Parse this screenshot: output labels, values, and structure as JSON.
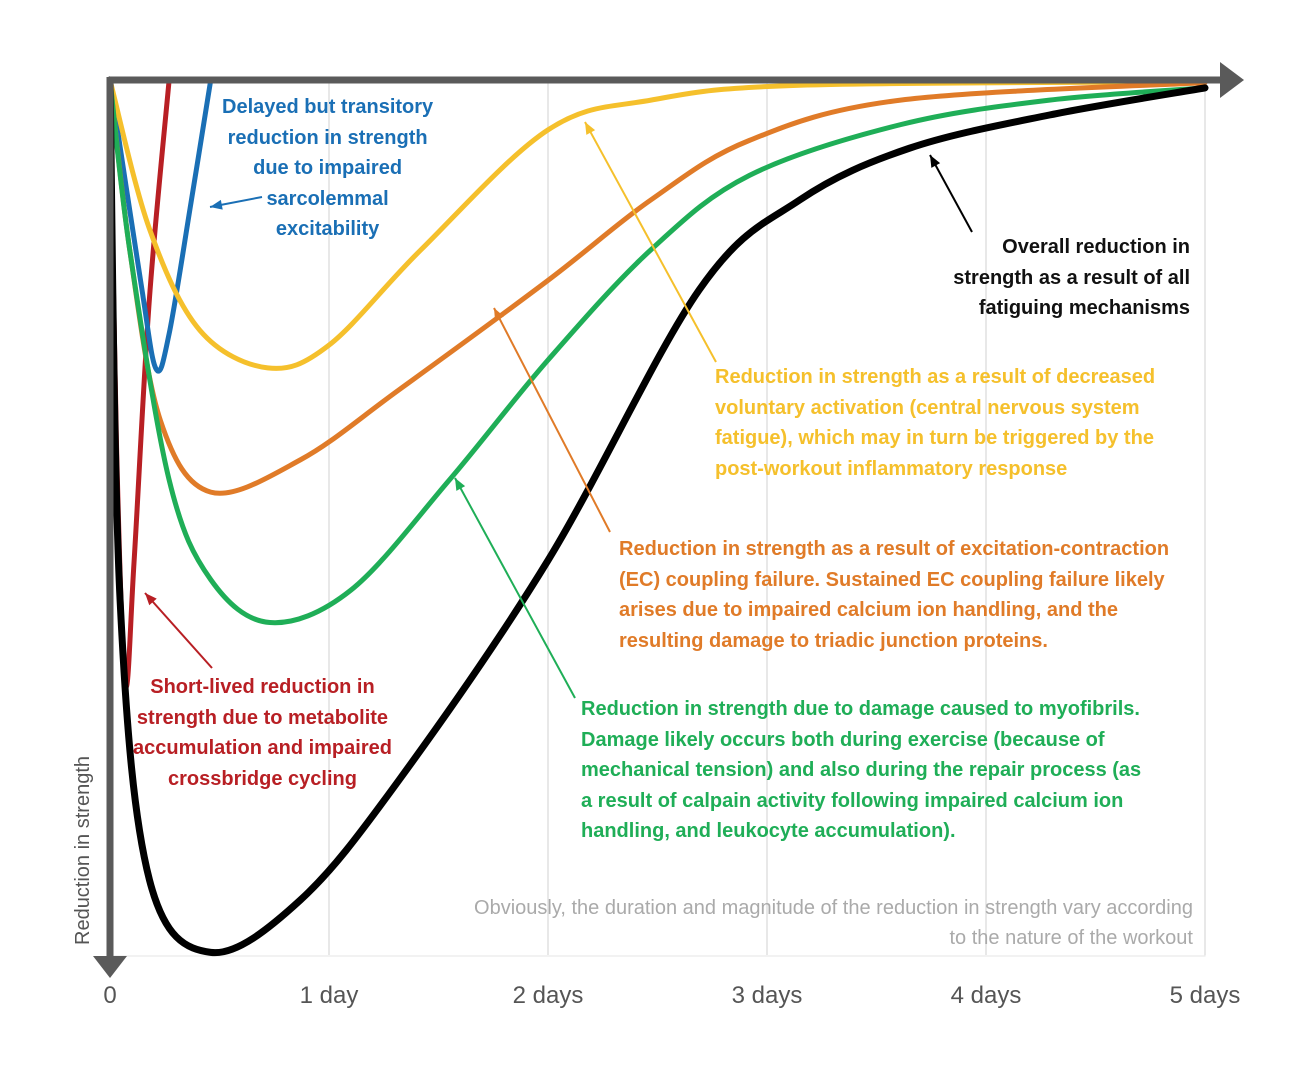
{
  "chart_data": {
    "type": "line",
    "title": "",
    "xlabel": "",
    "ylabel": "Reduction in strength",
    "x_unit": "days",
    "xlim": [
      0,
      5
    ],
    "ylim": [
      0,
      100
    ],
    "y_inverted": true,
    "grid": "vertical",
    "tick_labels": [
      "0",
      "1 day",
      "2 days",
      "3 days",
      "4 days",
      "5 days"
    ],
    "series": [
      {
        "key": "red",
        "color": "#b81f24",
        "x": [
          0,
          0.03,
          0.07,
          0.11,
          0.18,
          0.27
        ],
        "y": [
          0,
          42,
          69,
          55,
          25,
          0
        ]
      },
      {
        "key": "blue",
        "color": "#1a6fb5",
        "x": [
          0,
          0.14,
          0.21,
          0.27,
          0.37,
          0.46
        ],
        "y": [
          0,
          23,
          33,
          29,
          14,
          0
        ]
      },
      {
        "key": "yellow",
        "color": "#f5c02c",
        "x": [
          0,
          0.18,
          0.41,
          0.72,
          1.0,
          1.42,
          2.0,
          2.47,
          3.15,
          5
        ],
        "y": [
          0,
          17,
          28.6,
          32.9,
          30.3,
          19.4,
          5.7,
          2.3,
          0.6,
          0.2
        ]
      },
      {
        "key": "orange",
        "color": "#e07b28",
        "x": [
          0,
          0.09,
          0.23,
          0.46,
          0.87,
          1.32,
          2.0,
          2.47,
          2.92,
          3.61,
          5
        ],
        "y": [
          0,
          19.4,
          38.9,
          47.1,
          43.4,
          35.4,
          22.9,
          13.7,
          6.9,
          2.3,
          0.3
        ]
      },
      {
        "key": "green",
        "color": "#1fae57",
        "x": [
          0,
          0.09,
          0.27,
          0.46,
          0.73,
          1.1,
          1.55,
          2.0,
          2.47,
          2.92,
          3.61,
          4.29,
          5
        ],
        "y": [
          0,
          19.4,
          45.7,
          57.1,
          62,
          58.3,
          45.7,
          32,
          19.4,
          10.9,
          5.1,
          2.3,
          0.9
        ]
      },
      {
        "key": "black",
        "color": "#000000",
        "x": [
          0,
          0.046,
          0.18,
          0.46,
          0.87,
          1.32,
          2.0,
          2.69,
          3.15,
          3.65,
          4.29,
          5
        ],
        "y": [
          0,
          59.4,
          91.4,
          99.7,
          93.7,
          80,
          54.9,
          24,
          13.7,
          7.8,
          4,
          0.9
        ]
      }
    ],
    "annotations": {
      "blue": "Delayed but transitory\nreduction in strength\ndue to impaired\nsarcolemmal\nexcitability",
      "black": "Overall reduction in\nstrength as a result of all\nfatiguing mechanisms",
      "yellow": "Reduction in strength as a result of decreased\nvoluntary activation (central nervous system\nfatigue), which may in turn be triggered by the\npost-workout inflammatory response",
      "orange": "Reduction in strength as a result of excitation-contraction\n(EC) coupling failure. Sustained EC coupling failure likely\narises due to impaired calcium ion handling, and the\nresulting damage to triadic junction proteins.",
      "red": "Short-lived reduction in\nstrength due to metabolite\naccumulation and impaired\ncrossbridge cycling",
      "green": "Reduction in strength due to damage caused to myofibrils.\nDamage likely occurs both during exercise (because of\nmechanical tension) and also during the repair process (as\na result of calpain activity following impaired calcium ion\nhandling, and leukocyte accumulation)."
    },
    "note": "Obviously, the duration and magnitude of the reduction in strength vary according\nto the nature of the workout"
  }
}
